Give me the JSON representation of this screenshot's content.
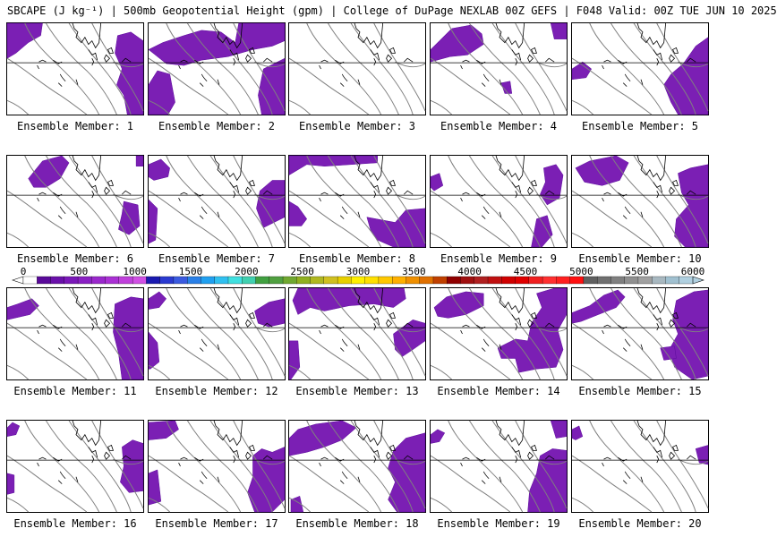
{
  "title": "SBCAPE (J kg⁻¹) | 500mb Geopotential Height (gpm) | College of DuPage NEXLAB 00Z GEFS | F048 Valid: 00Z TUE JUN 10 2025",
  "members": [
    {
      "label": "Ensemble Member: 1"
    },
    {
      "label": "Ensemble Member: 2"
    },
    {
      "label": "Ensemble Member: 3"
    },
    {
      "label": "Ensemble Member: 4"
    },
    {
      "label": "Ensemble Member: 5"
    },
    {
      "label": "Ensemble Member: 6"
    },
    {
      "label": "Ensemble Member: 7"
    },
    {
      "label": "Ensemble Member: 8"
    },
    {
      "label": "Ensemble Member: 9"
    },
    {
      "label": "Ensemble Member: 10"
    },
    {
      "label": "Ensemble Member: 11"
    },
    {
      "label": "Ensemble Member: 12"
    },
    {
      "label": "Ensemble Member: 13"
    },
    {
      "label": "Ensemble Member: 14"
    },
    {
      "label": "Ensemble Member: 15"
    },
    {
      "label": "Ensemble Member: 16"
    },
    {
      "label": "Ensemble Member: 17"
    },
    {
      "label": "Ensemble Member: 18"
    },
    {
      "label": "Ensemble Member: 19"
    },
    {
      "label": "Ensemble Member: 20"
    }
  ],
  "colorbar": {
    "ticks": [
      "0",
      "500",
      "1000",
      "1500",
      "2000",
      "2500",
      "3000",
      "3500",
      "4000",
      "4500",
      "5000",
      "5500",
      "6000"
    ],
    "colors": [
      "#ffffff",
      "#5a0a9a",
      "#6a10aa",
      "#7a18b8",
      "#8a20c4",
      "#9a28cc",
      "#aa30d4",
      "#c040dc",
      "#d050e4",
      "#1a1ab0",
      "#2a3ad0",
      "#3a5ae0",
      "#2a80e8",
      "#20a0f0",
      "#30c0f0",
      "#40e0e0",
      "#40d0b0",
      "#40a040",
      "#50a040",
      "#70a830",
      "#90b020",
      "#b0b820",
      "#d0c020",
      "#e8d000",
      "#fff000",
      "#ffe000",
      "#ffc800",
      "#ffb000",
      "#f09000",
      "#e07000",
      "#c04000",
      "#900000",
      "#a01010",
      "#b02020",
      "#c01010",
      "#d00000",
      "#e00000",
      "#f02020",
      "#ff3030",
      "#ff2020",
      "#ff1010",
      "#606060",
      "#707070",
      "#808080",
      "#909090",
      "#a0a0a0",
      "#a8b8c0",
      "#a0c0d0",
      "#b0d0e0"
    ]
  }
}
